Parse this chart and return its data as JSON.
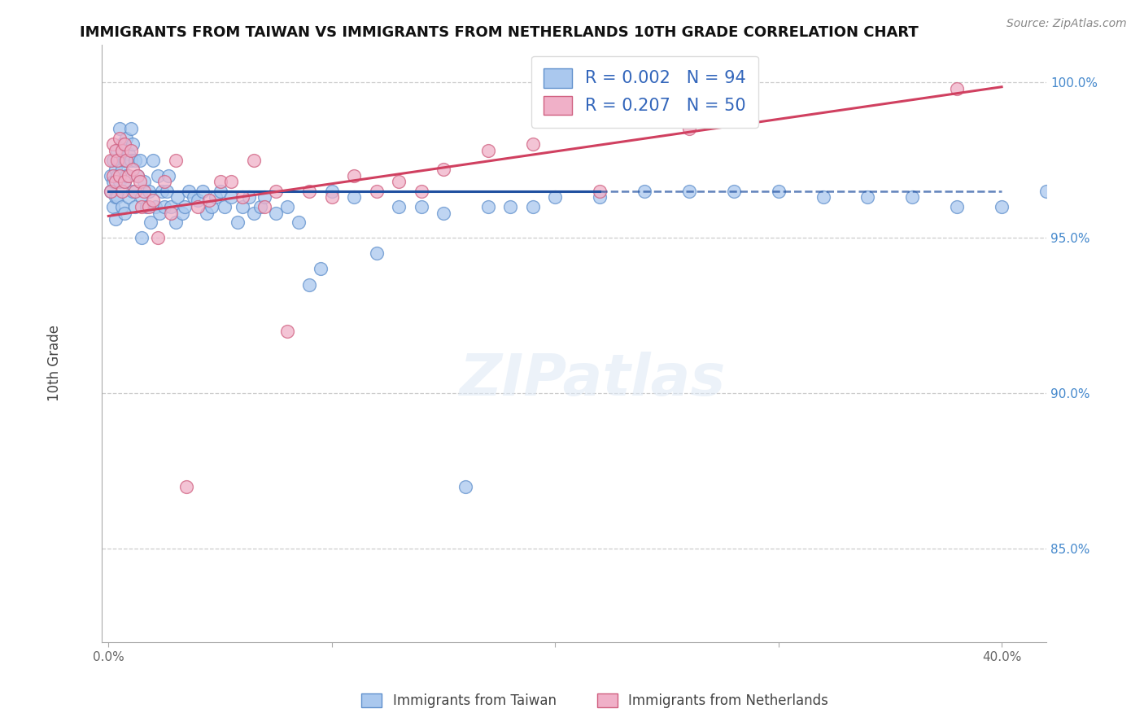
{
  "title": "IMMIGRANTS FROM TAIWAN VS IMMIGRANTS FROM NETHERLANDS 10TH GRADE CORRELATION CHART",
  "source": "Source: ZipAtlas.com",
  "ylabel": "10th Grade",
  "xlim": [
    -0.003,
    0.42
  ],
  "ylim": [
    0.82,
    1.012
  ],
  "x_ticks": [
    0.0,
    0.1,
    0.2,
    0.3,
    0.4
  ],
  "x_tick_labels": [
    "0.0%",
    "",
    "",
    "",
    "40.0%"
  ],
  "y_ticks": [
    0.85,
    0.9,
    0.95,
    1.0
  ],
  "y_tick_labels": [
    "85.0%",
    "90.0%",
    "95.0%",
    "100.0%"
  ],
  "taiwan_color": "#aac8ee",
  "taiwan_edge_color": "#6090cc",
  "netherlands_color": "#f0b0c8",
  "netherlands_edge_color": "#d06080",
  "trend_blue_color": "#2050a0",
  "trend_pink_color": "#d04060",
  "R_taiwan": 0.002,
  "N_taiwan": 94,
  "R_netherlands": 0.207,
  "N_netherlands": 50,
  "legend_taiwan_label": "Immigrants from Taiwan",
  "legend_netherlands_label": "Immigrants from Netherlands",
  "watermark": "ZIPatlas",
  "blue_trend_y_at_0": 0.965,
  "blue_trend_y_at_40": 0.965,
  "pink_trend_y_at_0": 0.957,
  "pink_trend_y_at_40": 0.9985,
  "taiwan_x": [
    0.001,
    0.001,
    0.002,
    0.002,
    0.002,
    0.003,
    0.003,
    0.003,
    0.004,
    0.004,
    0.004,
    0.005,
    0.005,
    0.005,
    0.006,
    0.006,
    0.006,
    0.007,
    0.007,
    0.007,
    0.008,
    0.008,
    0.009,
    0.009,
    0.01,
    0.01,
    0.011,
    0.011,
    0.012,
    0.012,
    0.013,
    0.014,
    0.015,
    0.015,
    0.016,
    0.017,
    0.018,
    0.019,
    0.02,
    0.021,
    0.022,
    0.023,
    0.024,
    0.025,
    0.026,
    0.027,
    0.028,
    0.03,
    0.031,
    0.033,
    0.034,
    0.036,
    0.038,
    0.04,
    0.042,
    0.044,
    0.046,
    0.048,
    0.05,
    0.052,
    0.055,
    0.058,
    0.06,
    0.063,
    0.065,
    0.068,
    0.07,
    0.075,
    0.08,
    0.085,
    0.09,
    0.095,
    0.1,
    0.11,
    0.12,
    0.13,
    0.14,
    0.15,
    0.16,
    0.17,
    0.18,
    0.19,
    0.2,
    0.22,
    0.24,
    0.26,
    0.28,
    0.3,
    0.32,
    0.34,
    0.36,
    0.38,
    0.4,
    0.42
  ],
  "taiwan_y": [
    0.97,
    0.965,
    0.975,
    0.968,
    0.96,
    0.972,
    0.963,
    0.956,
    0.978,
    0.97,
    0.963,
    0.985,
    0.975,
    0.968,
    0.98,
    0.972,
    0.96,
    0.975,
    0.968,
    0.958,
    0.982,
    0.97,
    0.977,
    0.963,
    0.985,
    0.975,
    0.98,
    0.965,
    0.975,
    0.96,
    0.97,
    0.975,
    0.963,
    0.95,
    0.968,
    0.96,
    0.965,
    0.955,
    0.975,
    0.96,
    0.97,
    0.958,
    0.965,
    0.96,
    0.965,
    0.97,
    0.96,
    0.955,
    0.963,
    0.958,
    0.96,
    0.965,
    0.963,
    0.962,
    0.965,
    0.958,
    0.96,
    0.963,
    0.965,
    0.96,
    0.963,
    0.955,
    0.96,
    0.963,
    0.958,
    0.96,
    0.963,
    0.958,
    0.96,
    0.955,
    0.935,
    0.94,
    0.965,
    0.963,
    0.945,
    0.96,
    0.96,
    0.958,
    0.87,
    0.96,
    0.96,
    0.96,
    0.963,
    0.963,
    0.965,
    0.965,
    0.965,
    0.965,
    0.963,
    0.963,
    0.963,
    0.96,
    0.96,
    0.965
  ],
  "netherlands_x": [
    0.001,
    0.001,
    0.002,
    0.002,
    0.003,
    0.003,
    0.004,
    0.005,
    0.005,
    0.006,
    0.006,
    0.007,
    0.007,
    0.008,
    0.009,
    0.01,
    0.011,
    0.012,
    0.013,
    0.014,
    0.015,
    0.016,
    0.018,
    0.02,
    0.022,
    0.025,
    0.028,
    0.03,
    0.035,
    0.04,
    0.045,
    0.05,
    0.055,
    0.06,
    0.065,
    0.07,
    0.075,
    0.08,
    0.09,
    0.1,
    0.11,
    0.12,
    0.13,
    0.14,
    0.15,
    0.17,
    0.19,
    0.22,
    0.26,
    0.38
  ],
  "netherlands_y": [
    0.975,
    0.965,
    0.98,
    0.97,
    0.978,
    0.968,
    0.975,
    0.982,
    0.97,
    0.978,
    0.965,
    0.98,
    0.968,
    0.975,
    0.97,
    0.978,
    0.972,
    0.965,
    0.97,
    0.968,
    0.96,
    0.965,
    0.96,
    0.962,
    0.95,
    0.968,
    0.958,
    0.975,
    0.87,
    0.96,
    0.962,
    0.968,
    0.968,
    0.963,
    0.975,
    0.96,
    0.965,
    0.92,
    0.965,
    0.963,
    0.97,
    0.965,
    0.968,
    0.965,
    0.972,
    0.978,
    0.98,
    0.965,
    0.985,
    0.998
  ]
}
